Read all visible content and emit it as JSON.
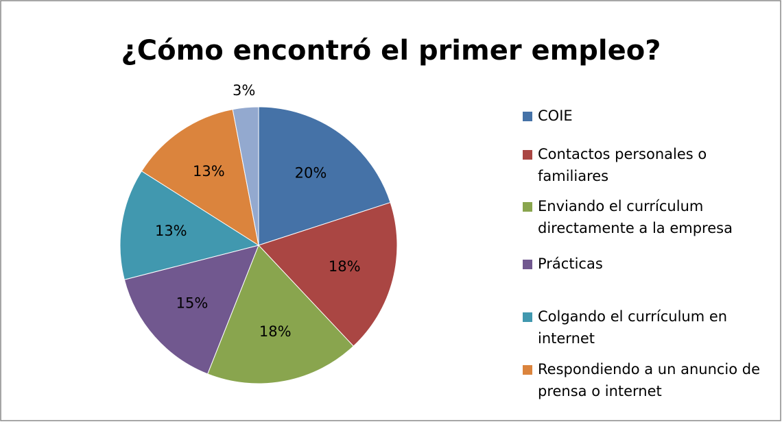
{
  "chart_data": {
    "type": "pie",
    "title": "¿Cómo encontró el primer empleo?",
    "categories": [
      "COIE",
      "Contactos personales o familiares",
      "Enviando el currículum directamente a la empresa",
      "Prácticas",
      "Colgando el currículum en internet",
      "Respondiendo a un anuncio de prensa o internet",
      null
    ],
    "values": [
      20,
      18,
      18,
      15,
      13,
      13,
      3
    ],
    "value_labels": [
      "20%",
      "18%",
      "18%",
      "15%",
      "13%",
      "13%",
      "3%"
    ],
    "colors": [
      "#4572a7",
      "#aa4643",
      "#89a54e",
      "#71588f",
      "#4198af",
      "#db843d",
      "#93a9cf"
    ],
    "legend": "right"
  }
}
